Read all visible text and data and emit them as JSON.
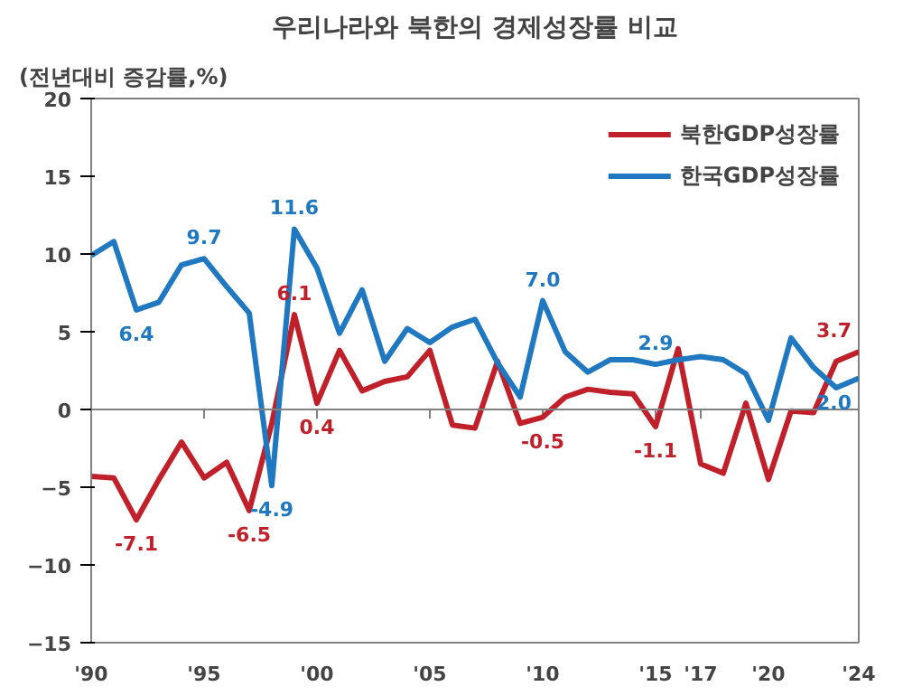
{
  "chart_data": {
    "type": "line",
    "title": "우리나라와 북한의 경제성장률 비교",
    "ylabel": "(전년대비 증감률,%)",
    "x": [
      1990,
      1991,
      1992,
      1993,
      1994,
      1995,
      1996,
      1997,
      1998,
      1999,
      2000,
      2001,
      2002,
      2003,
      2004,
      2005,
      2006,
      2007,
      2008,
      2009,
      2010,
      2011,
      2012,
      2013,
      2014,
      2015,
      2016,
      2017,
      2018,
      2019,
      2020,
      2021,
      2022,
      2023,
      2024
    ],
    "series": [
      {
        "name": "북한GDP성장률",
        "color": "#c0202a",
        "values": [
          -4.3,
          -4.4,
          -7.1,
          -4.5,
          -2.1,
          -4.4,
          -3.4,
          -6.5,
          -0.9,
          6.1,
          0.4,
          3.8,
          1.2,
          1.8,
          2.1,
          3.8,
          -1.0,
          -1.2,
          3.1,
          -0.9,
          -0.5,
          0.8,
          1.3,
          1.1,
          1.0,
          -1.1,
          3.9,
          -3.5,
          -4.1,
          0.4,
          -4.5,
          -0.1,
          -0.2,
          3.1,
          3.7
        ],
        "value_labels": [
          null,
          null,
          "-7.1",
          null,
          null,
          null,
          null,
          "-6.5",
          null,
          "6.1",
          "0.4",
          null,
          null,
          null,
          null,
          null,
          null,
          null,
          null,
          null,
          "-0.5",
          null,
          null,
          null,
          null,
          "-1.1",
          null,
          null,
          null,
          null,
          null,
          null,
          null,
          null,
          "3.7"
        ]
      },
      {
        "name": "한국GDP성장률",
        "color": "#1f78c0",
        "values": [
          9.9,
          10.8,
          6.4,
          6.9,
          9.3,
          9.7,
          7.9,
          6.2,
          -4.9,
          11.6,
          9.1,
          4.9,
          7.7,
          3.1,
          5.2,
          4.3,
          5.3,
          5.8,
          3.0,
          0.8,
          7.0,
          3.7,
          2.4,
          3.2,
          3.2,
          2.9,
          3.2,
          3.4,
          3.2,
          2.3,
          -0.7,
          4.6,
          2.7,
          1.4,
          2.0
        ],
        "value_labels": [
          null,
          null,
          "6.4",
          null,
          null,
          "9.7",
          null,
          null,
          "-4.9",
          "11.6",
          null,
          null,
          null,
          null,
          null,
          null,
          null,
          null,
          null,
          null,
          "7.0",
          null,
          null,
          null,
          null,
          "2.9",
          null,
          null,
          null,
          null,
          null,
          null,
          null,
          null,
          "2.0"
        ]
      }
    ],
    "xlim": [
      1990,
      2024
    ],
    "xticks": [
      {
        "value": 1990,
        "label": "'90"
      },
      {
        "value": 1995,
        "label": "'95"
      },
      {
        "value": 2000,
        "label": "'00"
      },
      {
        "value": 2005,
        "label": "'05"
      },
      {
        "value": 2010,
        "label": "'10"
      },
      {
        "value": 2015,
        "label": "'15"
      },
      {
        "value": 2017,
        "label": "'17"
      },
      {
        "value": 2020,
        "label": "'20"
      },
      {
        "value": 2024,
        "label": "'24"
      }
    ],
    "ylim": [
      -15,
      20
    ],
    "yticks": [
      -15,
      -10,
      -5,
      0,
      5,
      10,
      15,
      20
    ],
    "ref_lines": [
      {
        "axis": "y",
        "value": 0,
        "color": "#808080"
      }
    ],
    "legend": "top right",
    "grid": false,
    "marker": "none",
    "line_style": "solid"
  }
}
